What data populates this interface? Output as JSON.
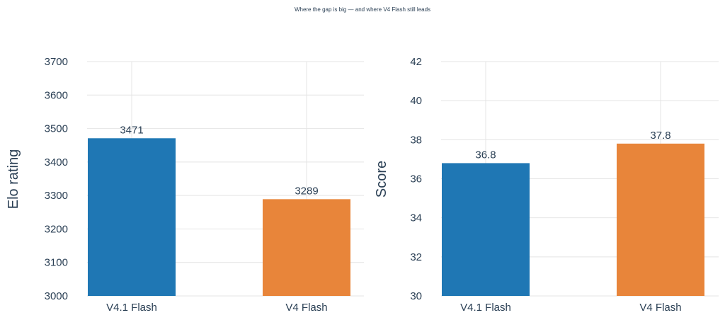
{
  "figure_title": "Where the gap is big — and where V4 Flash still leads",
  "chart_data": [
    {
      "type": "bar",
      "title": "",
      "xlabel": "",
      "ylabel": "Elo rating",
      "categories": [
        "V4.1 Flash",
        "V4 Flash"
      ],
      "values": [
        3471,
        3289
      ],
      "value_labels": [
        "3471",
        "3289"
      ],
      "ylim": [
        3000,
        3700
      ],
      "yticks": [
        3000,
        3100,
        3200,
        3300,
        3400,
        3500,
        3600,
        3700
      ],
      "ytick_labels": [
        "3000",
        "3100",
        "3200",
        "3300",
        "3400",
        "3500",
        "3600",
        "3700"
      ],
      "colors": [
        "#1f77b4",
        "#e8853a"
      ],
      "grid": true,
      "legend": "none"
    },
    {
      "type": "bar",
      "title": "",
      "xlabel": "",
      "ylabel": "Score",
      "categories": [
        "V4.1 Flash",
        "V4 Flash"
      ],
      "values": [
        36.8,
        37.8
      ],
      "value_labels": [
        "36.8",
        "37.8"
      ],
      "ylim": [
        30,
        42
      ],
      "yticks": [
        30,
        32,
        34,
        36,
        38,
        40,
        42
      ],
      "ytick_labels": [
        "30",
        "32",
        "34",
        "36",
        "38",
        "40",
        "42"
      ],
      "colors": [
        "#1f77b4",
        "#e8853a"
      ],
      "grid": true,
      "legend": "none"
    }
  ]
}
